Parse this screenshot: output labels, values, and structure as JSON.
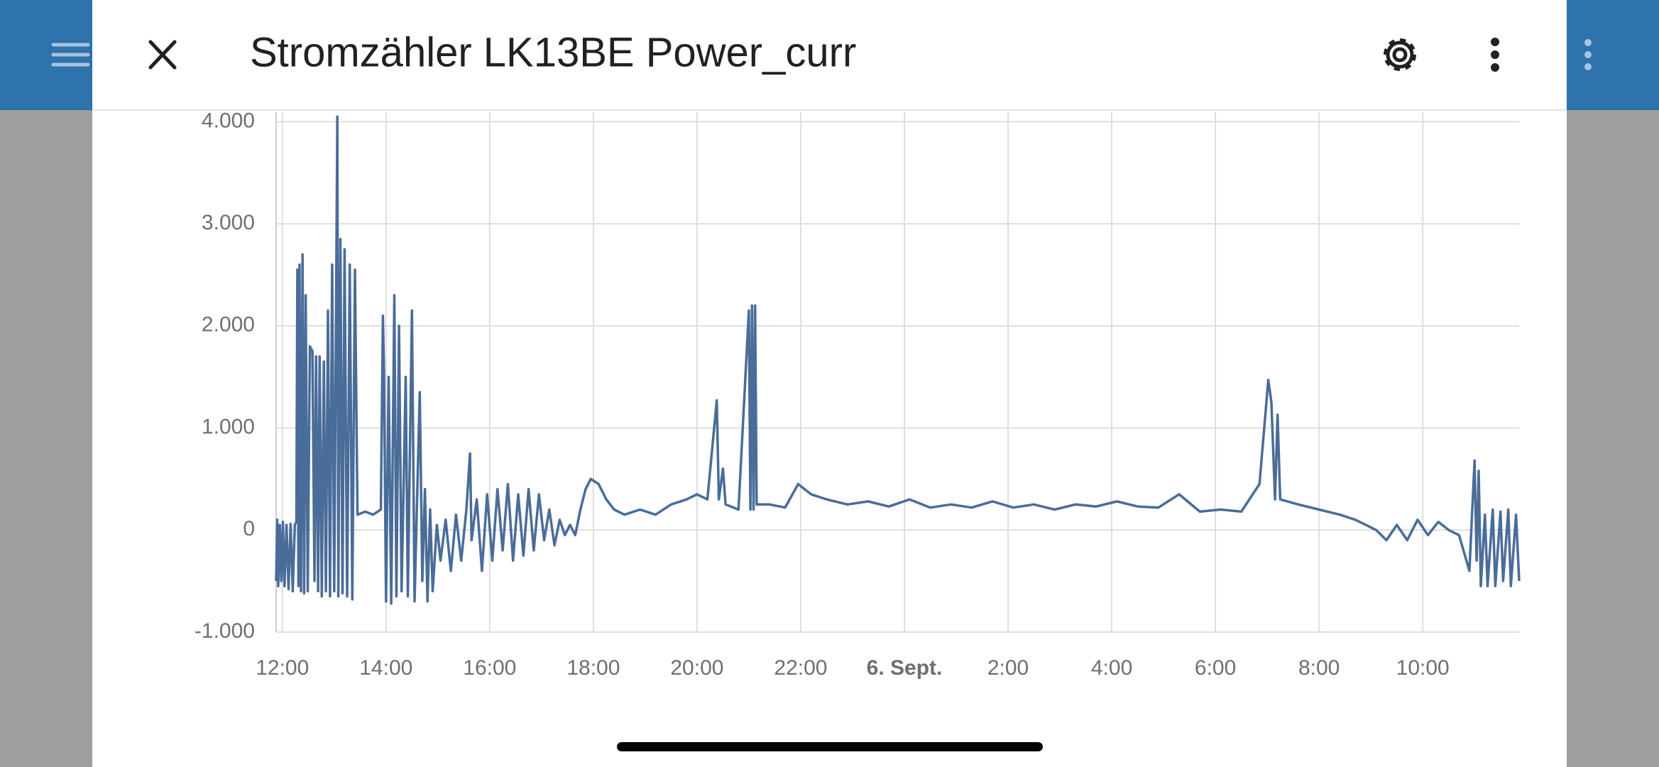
{
  "header": {
    "title": "Stromzähler LK13BE Power_curr"
  },
  "chart_data": {
    "type": "line",
    "grid": true,
    "xlim": [
      11.88,
      35.86
    ],
    "xticks": [
      {
        "value": 12,
        "label": "12:00"
      },
      {
        "value": 14,
        "label": "14:00"
      },
      {
        "value": 16,
        "label": "16:00"
      },
      {
        "value": 18,
        "label": "18:00"
      },
      {
        "value": 20,
        "label": "20:00"
      },
      {
        "value": 22,
        "label": "22:00"
      },
      {
        "value": 24,
        "label": "6. Sept.",
        "bold": true
      },
      {
        "value": 26,
        "label": "2:00"
      },
      {
        "value": 28,
        "label": "4:00"
      },
      {
        "value": 30,
        "label": "6:00"
      },
      {
        "value": 32,
        "label": "8:00"
      },
      {
        "value": 34,
        "label": "10:00"
      }
    ],
    "ylim": [
      -1000,
      4100
    ],
    "yticks": [
      {
        "value": -1000,
        "label": "-1.000"
      },
      0,
      {
        "value": 1000,
        "label": "1.000"
      },
      {
        "value": 2000,
        "label": "2.000"
      },
      {
        "value": 3000,
        "label": "3.000"
      },
      {
        "value": 4000,
        "label": "4.000"
      }
    ],
    "series": [
      {
        "color": "#4a6c99",
        "x": [
          11.88,
          11.9,
          11.92,
          11.95,
          11.98,
          12.01,
          12.04,
          12.08,
          12.12,
          12.16,
          12.2,
          12.24,
          12.27,
          12.29,
          12.31,
          12.33,
          12.36,
          12.39,
          12.42,
          12.45,
          12.49,
          12.53,
          12.58,
          12.62,
          12.65,
          12.69,
          12.72,
          12.76,
          12.8,
          12.84,
          12.88,
          12.92,
          12.96,
          13.0,
          13.06,
          13.08,
          13.12,
          13.16,
          13.2,
          13.25,
          13.3,
          13.35,
          13.4,
          13.45,
          13.6,
          13.75,
          13.9,
          13.94,
          13.96,
          14.0,
          14.05,
          14.1,
          14.16,
          14.2,
          14.25,
          14.3,
          14.38,
          14.42,
          14.5,
          14.55,
          14.65,
          14.7,
          14.75,
          14.8,
          14.85,
          14.9,
          14.98,
          15.05,
          15.15,
          15.25,
          15.35,
          15.45,
          15.55,
          15.62,
          15.65,
          15.75,
          15.85,
          15.95,
          16.05,
          16.15,
          16.25,
          16.35,
          16.45,
          16.55,
          16.65,
          16.75,
          16.85,
          16.95,
          17.05,
          17.15,
          17.25,
          17.35,
          17.45,
          17.55,
          17.65,
          17.75,
          17.85,
          17.95,
          18.1,
          18.25,
          18.4,
          18.6,
          18.9,
          19.2,
          19.5,
          19.8,
          20.0,
          20.2,
          20.38,
          20.42,
          20.5,
          20.55,
          20.8,
          21.0,
          21.03,
          21.06,
          21.09,
          21.12,
          21.15,
          21.4,
          21.7,
          21.95,
          22.2,
          22.5,
          22.9,
          23.3,
          23.7,
          24.1,
          24.5,
          24.9,
          25.3,
          25.7,
          26.1,
          26.5,
          26.9,
          27.3,
          27.7,
          28.1,
          28.5,
          28.9,
          29.3,
          29.7,
          30.1,
          30.5,
          30.85,
          31.02,
          31.08,
          31.15,
          31.2,
          31.25,
          31.6,
          32.0,
          32.4,
          32.7,
          32.9,
          33.1,
          33.3,
          33.5,
          33.7,
          33.9,
          34.1,
          34.3,
          34.5,
          34.7,
          34.9,
          35.0,
          35.04,
          35.08,
          35.12,
          35.2,
          35.25,
          35.35,
          35.4,
          35.5,
          35.55,
          35.65,
          35.7,
          35.8,
          35.86
        ],
        "values": [
          -500,
          100,
          -550,
          50,
          -500,
          80,
          -550,
          50,
          -580,
          60,
          -600,
          50,
          80,
          2550,
          -550,
          2600,
          -600,
          2700,
          -620,
          2300,
          -600,
          1800,
          1750,
          -500,
          1700,
          -600,
          1700,
          -650,
          1650,
          -600,
          2150,
          -650,
          2600,
          -600,
          4050,
          -650,
          2850,
          -620,
          2750,
          -650,
          2600,
          -680,
          2550,
          150,
          180,
          150,
          200,
          2100,
          1550,
          -700,
          1500,
          -720,
          2300,
          -650,
          2000,
          -600,
          1500,
          -650,
          2150,
          -700,
          1350,
          -500,
          400,
          -700,
          200,
          -600,
          50,
          -300,
          100,
          -400,
          150,
          -300,
          200,
          750,
          -100,
          300,
          -400,
          350,
          -300,
          400,
          -200,
          450,
          -300,
          350,
          -250,
          400,
          -200,
          350,
          -100,
          200,
          -150,
          100,
          -50,
          50,
          -50,
          200,
          400,
          500,
          450,
          300,
          200,
          150,
          200,
          150,
          250,
          300,
          350,
          300,
          1270,
          300,
          600,
          250,
          200,
          2150,
          200,
          2200,
          200,
          2200,
          250,
          250,
          220,
          450,
          350,
          300,
          250,
          280,
          230,
          300,
          220,
          250,
          220,
          280,
          220,
          250,
          200,
          250,
          230,
          280,
          230,
          220,
          350,
          180,
          200,
          180,
          450,
          1470,
          1250,
          300,
          1130,
          300,
          250,
          200,
          150,
          100,
          50,
          0,
          -100,
          50,
          -100,
          100,
          -50,
          80,
          0,
          -50,
          -400,
          680,
          -300,
          580,
          -550,
          150,
          -550,
          200,
          -550,
          180,
          -500,
          200,
          -550,
          150,
          -500
        ]
      }
    ]
  }
}
